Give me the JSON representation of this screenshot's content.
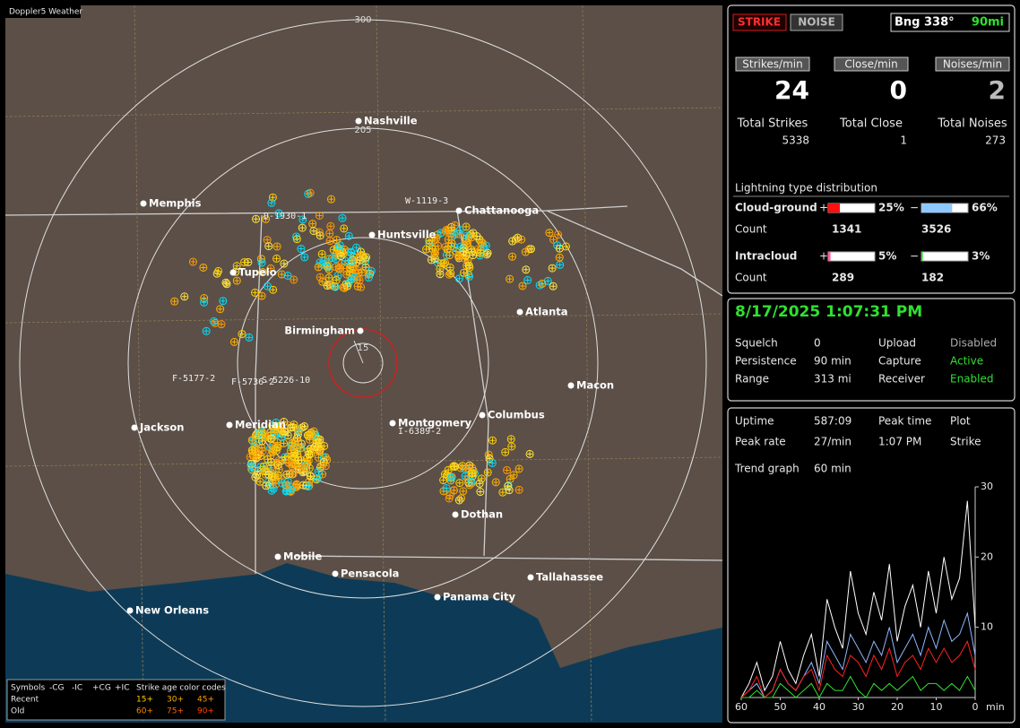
{
  "map": {
    "app_title": "Doppler5 Weather",
    "range_labels": [
      "300",
      "205",
      "15"
    ],
    "cities": [
      "Nashville",
      "Memphis",
      "Huntsville",
      "Chattanooga",
      "Tupelo",
      "Atlanta",
      "Birmingham",
      "Macon",
      "Jackson",
      "Meridian",
      "Montgomery",
      "Columbus",
      "Dothan",
      "Mobile",
      "Pensacola",
      "Tallahassee",
      "Panama City",
      "New Orleans"
    ],
    "storm_labels": [
      "D-1930-1",
      "W-1119-3",
      "F-5177-2",
      "F-5736-2",
      "S-5226-10",
      "I-6389-2"
    ],
    "legend": {
      "symbols": "Symbols",
      "columns": [
        "-CG",
        "-IC",
        "+CG",
        "+IC"
      ],
      "age_title": "Strike age color codes",
      "rows": [
        "Recent",
        "Old"
      ],
      "recent_ages": [
        "15+",
        "30+",
        "45+"
      ],
      "old_ages": [
        "60+",
        "75+",
        "90+"
      ]
    }
  },
  "panel": {
    "strike_button": "STRIKE",
    "noise_button": "NOISE",
    "bearing": "Bng 338°",
    "range": "90mi",
    "counters": [
      {
        "label": "Strikes/min",
        "value": 24,
        "total_label": "Total Strikes",
        "total": 5338
      },
      {
        "label": "Close/min",
        "value": 0,
        "total_label": "Total Close",
        "total": 1
      },
      {
        "label": "Noises/min",
        "value": 2,
        "total_label": "Total Noises",
        "total": 273
      }
    ],
    "distribution": {
      "title": "Lightning type distribution",
      "rows": [
        {
          "name": "Cloud-ground",
          "plus": "+",
          "minus": "−",
          "pos_pct": {
            "value": 25,
            "label": "25%"
          },
          "neg_pct": {
            "value": 66,
            "label": "66%"
          },
          "count_label": "Count",
          "pos_count": 1341,
          "neg_count": 3526
        },
        {
          "name": "Intracloud",
          "plus": "+",
          "minus": "−",
          "pos_pct": {
            "value": 5,
            "label": "5%"
          },
          "neg_pct": {
            "value": 3,
            "label": "3%"
          },
          "count_label": "Count",
          "pos_count": 289,
          "neg_count": 182
        }
      ]
    },
    "datetime": "8/17/2025 1:07:31 PM",
    "status": [
      [
        "Squelch",
        "0",
        "Upload",
        "Disabled"
      ],
      [
        "Persistence",
        "90 min",
        "Capture",
        "Active"
      ],
      [
        "Range",
        "313 mi",
        "Receiver",
        "Enabled"
      ]
    ],
    "stats": [
      [
        "Uptime",
        "587:09",
        "Peak time",
        "Plot"
      ],
      [
        "Peak rate",
        "27/min",
        "1:07 PM",
        "Strike"
      ],
      [
        "Trend graph",
        "60 min"
      ]
    ]
  },
  "chart_data": {
    "type": "line",
    "x_unit": "min",
    "x": [
      60,
      58,
      56,
      54,
      52,
      50,
      48,
      46,
      44,
      42,
      40,
      38,
      36,
      34,
      32,
      30,
      28,
      26,
      24,
      22,
      20,
      18,
      16,
      14,
      12,
      10,
      8,
      6,
      4,
      2,
      0
    ],
    "xlim": [
      60,
      0
    ],
    "xticks": [
      60,
      50,
      40,
      30,
      20,
      10,
      0
    ],
    "ylim": [
      0,
      30
    ],
    "yticks": [
      10,
      20,
      30
    ],
    "series": [
      {
        "color": "#ffffff",
        "values": [
          0,
          2,
          5,
          1,
          3,
          8,
          4,
          2,
          6,
          9,
          3,
          14,
          10,
          7,
          18,
          12,
          9,
          15,
          11,
          19,
          8,
          13,
          16,
          10,
          18,
          12,
          20,
          14,
          17,
          28,
          10
        ]
      },
      {
        "color": "#8fb8ff",
        "values": [
          0,
          1,
          2,
          0,
          1,
          4,
          2,
          1,
          3,
          5,
          2,
          8,
          6,
          4,
          9,
          7,
          5,
          8,
          6,
          10,
          5,
          7,
          9,
          6,
          10,
          7,
          11,
          8,
          9,
          12,
          6
        ]
      },
      {
        "color": "#ff2020",
        "values": [
          0,
          1,
          3,
          0,
          1,
          4,
          2,
          1,
          3,
          4,
          1,
          6,
          4,
          3,
          6,
          5,
          3,
          6,
          4,
          7,
          3,
          5,
          6,
          4,
          7,
          5,
          7,
          5,
          6,
          8,
          4
        ]
      },
      {
        "color": "#30e030",
        "values": [
          0,
          0,
          1,
          0,
          0,
          2,
          1,
          0,
          1,
          2,
          0,
          2,
          1,
          1,
          3,
          1,
          0,
          2,
          1,
          2,
          1,
          2,
          3,
          1,
          2,
          2,
          1,
          2,
          1,
          3,
          1
        ]
      }
    ]
  }
}
